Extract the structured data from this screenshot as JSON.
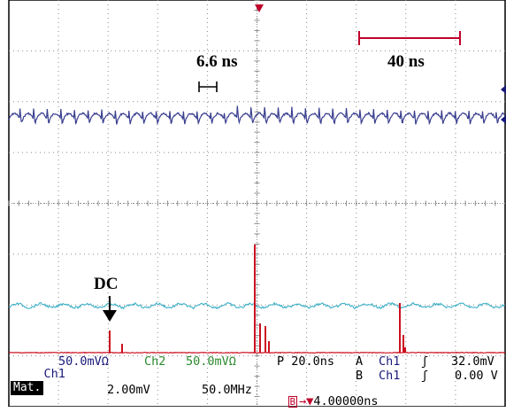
{
  "annotations": {
    "period_label": "6.6 ns",
    "scale_label": "40 ns",
    "dc_label": "DC"
  },
  "status_row1": {
    "ch1": "Ch1",
    "ch1_scale": "50.0mVΩ",
    "ch2": "Ch2",
    "ch2_scale": "50.0mVΩ",
    "timebase": "P 20.0ns",
    "trig_a": "A",
    "trig_a_source": "Ch1",
    "trig_a_slope": "ʃ",
    "trig_a_level": "32.0mV"
  },
  "status_row2": {
    "trig_b": "B",
    "trig_b_source": "Ch1",
    "trig_b_slope": "ʃ",
    "trig_b_level": "0.00 V"
  },
  "status_row3": {
    "math_label": "Mat.",
    "math_scale": "2.00mV",
    "math_span": "50.0MHz",
    "delay_box": "B",
    "delay_arrow": "→▼",
    "delay_value": "4.00000ns"
  },
  "colors": {
    "ch1_trace": "#3a3f8f",
    "ch2_trace": "#3ab0c8",
    "math_trace": "#cc1020",
    "grid": "#8c8c8c"
  }
}
